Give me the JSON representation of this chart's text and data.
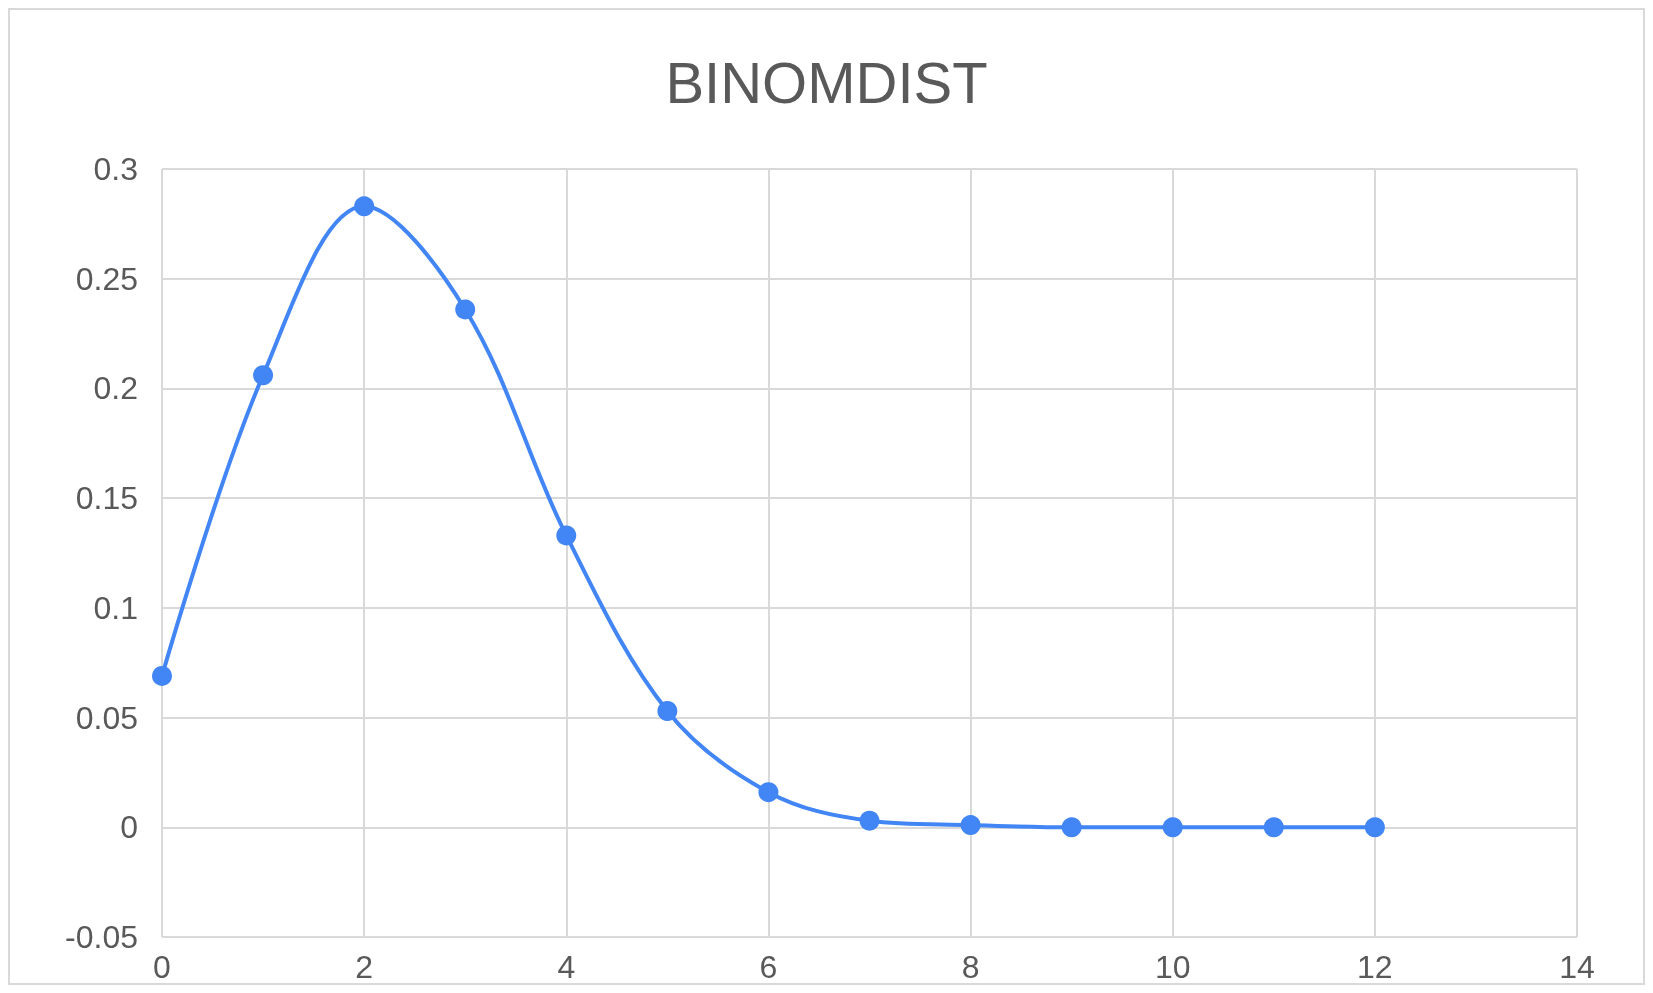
{
  "chart_data": {
    "type": "line",
    "title": "BINOMDIST",
    "x": [
      0,
      1,
      2,
      3,
      4,
      5,
      6,
      7,
      8,
      9,
      10,
      11,
      12
    ],
    "values": [
      0.069,
      0.206,
      0.283,
      0.236,
      0.133,
      0.053,
      0.016,
      0.003,
      0.001,
      0,
      0,
      0,
      0
    ],
    "color": "#4285f4",
    "xlim": [
      0,
      14
    ],
    "xticks": [
      0,
      2,
      4,
      6,
      8,
      10,
      12,
      14
    ],
    "ylim": [
      -0.05,
      0.3
    ],
    "yticks": [
      -0.05,
      0,
      0.05,
      0.1,
      0.15,
      0.2,
      0.25,
      0.3
    ],
    "grid": true,
    "marker": "circle",
    "line_style": "solid"
  }
}
